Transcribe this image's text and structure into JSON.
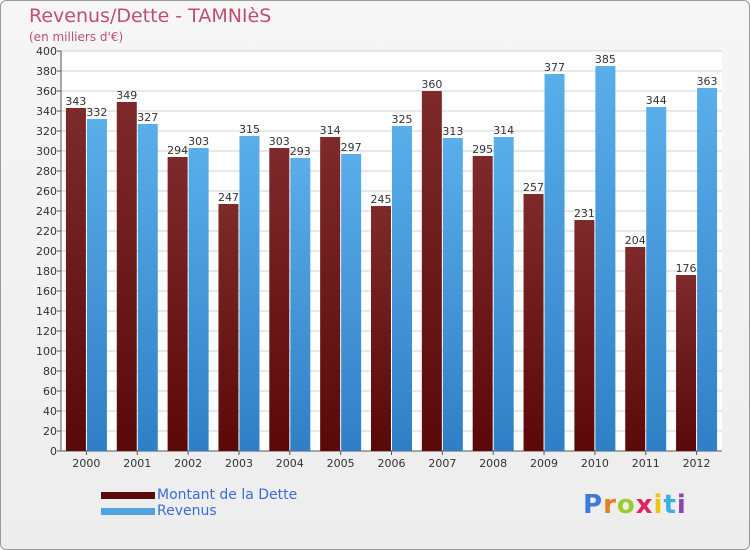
{
  "title": "Revenus/Dette - TAMNIèS",
  "subtitle": "(en milliers d'€)",
  "legend": {
    "debt_label": "Montant de la Dette",
    "revenue_label": "Revenus"
  },
  "logo": {
    "letters": [
      "P",
      "r",
      "o",
      "x",
      "i",
      "t",
      "i"
    ],
    "colors": [
      "#3a7bd5",
      "#e67e22",
      "#9acd32",
      "#e0245e",
      "#f1c40f",
      "#3ab0e0",
      "#8e44ad"
    ]
  },
  "colors": {
    "debt": "#7a1f1f",
    "revenue": "#4fa3e0",
    "title": "#c0506a"
  },
  "chart_data": {
    "type": "bar",
    "categories": [
      "2000",
      "2001",
      "2002",
      "2003",
      "2004",
      "2005",
      "2006",
      "2007",
      "2008",
      "2009",
      "2010",
      "2011",
      "2012"
    ],
    "series": [
      {
        "name": "Montant de la Dette",
        "values": [
          343,
          349,
          294,
          247,
          303,
          314,
          245,
          360,
          295,
          257,
          231,
          204,
          176
        ]
      },
      {
        "name": "Revenus",
        "values": [
          332,
          327,
          303,
          315,
          293,
          297,
          325,
          313,
          314,
          377,
          385,
          344,
          363
        ]
      }
    ],
    "ylim": [
      0,
      400
    ],
    "ytick_step": 20,
    "grid": true,
    "legend_position": "bottom-left"
  }
}
